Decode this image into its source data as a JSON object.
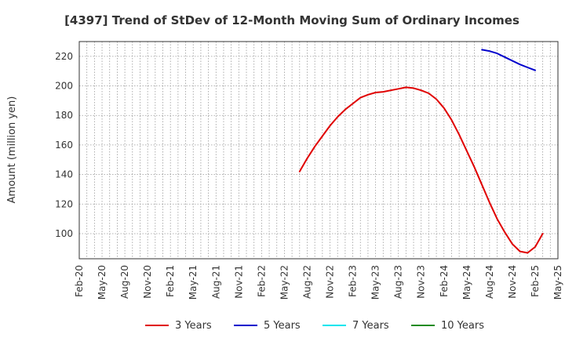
{
  "chart_data": {
    "type": "line",
    "title": "[4397]  Trend of StDev of 12-Month Moving Sum of Ordinary Incomes",
    "xlabel": "",
    "ylabel": "Amount (million yen)",
    "x_ticks": [
      "Feb-20",
      "May-20",
      "Aug-20",
      "Nov-20",
      "Feb-21",
      "May-21",
      "Aug-21",
      "Nov-21",
      "Feb-22",
      "May-22",
      "Aug-22",
      "Nov-22",
      "Feb-23",
      "May-23",
      "Aug-23",
      "Nov-23",
      "Feb-24",
      "May-24",
      "Aug-24",
      "Nov-24",
      "Feb-25",
      "May-25"
    ],
    "y_ticks": [
      100,
      120,
      140,
      160,
      180,
      200,
      220
    ],
    "ylim": [
      83,
      230
    ],
    "grid": true,
    "legend_position": "bottom",
    "series": [
      {
        "name": "3 Years",
        "color": "#e00000",
        "points": [
          [
            "Jul-22",
            142
          ],
          [
            "Aug-22",
            151
          ],
          [
            "Sep-22",
            159
          ],
          [
            "Oct-22",
            166
          ],
          [
            "Nov-22",
            173
          ],
          [
            "Dec-22",
            179
          ],
          [
            "Jan-23",
            184
          ],
          [
            "Feb-23",
            188
          ],
          [
            "Mar-23",
            192
          ],
          [
            "Apr-23",
            194
          ],
          [
            "May-23",
            195.5
          ],
          [
            "Jun-23",
            196
          ],
          [
            "Jul-23",
            197
          ],
          [
            "Aug-23",
            198
          ],
          [
            "Sep-23",
            199
          ],
          [
            "Oct-23",
            198.5
          ],
          [
            "Nov-23",
            197
          ],
          [
            "Dec-23",
            195
          ],
          [
            "Jan-24",
            191
          ],
          [
            "Feb-24",
            185
          ],
          [
            "Mar-24",
            177
          ],
          [
            "Apr-24",
            167
          ],
          [
            "May-24",
            156
          ],
          [
            "Jun-24",
            145
          ],
          [
            "Jul-24",
            133
          ],
          [
            "Aug-24",
            121
          ],
          [
            "Sep-24",
            110
          ],
          [
            "Oct-24",
            101
          ],
          [
            "Nov-24",
            93
          ],
          [
            "Dec-24",
            88
          ],
          [
            "Jan-25",
            87
          ],
          [
            "Feb-25",
            91
          ],
          [
            "Mar-25",
            100
          ]
        ]
      },
      {
        "name": "5 Years",
        "color": "#0000cc",
        "points": [
          [
            "Jul-24",
            224.5
          ],
          [
            "Aug-24",
            223.5
          ],
          [
            "Sep-24",
            222
          ],
          [
            "Oct-24",
            219.5
          ],
          [
            "Nov-24",
            217
          ],
          [
            "Dec-24",
            214.5
          ],
          [
            "Jan-25",
            212.5
          ],
          [
            "Feb-25",
            210.5
          ]
        ]
      },
      {
        "name": "7 Years",
        "color": "#00e5ee",
        "points": []
      },
      {
        "name": "10 Years",
        "color": "#228b22",
        "points": []
      }
    ]
  }
}
